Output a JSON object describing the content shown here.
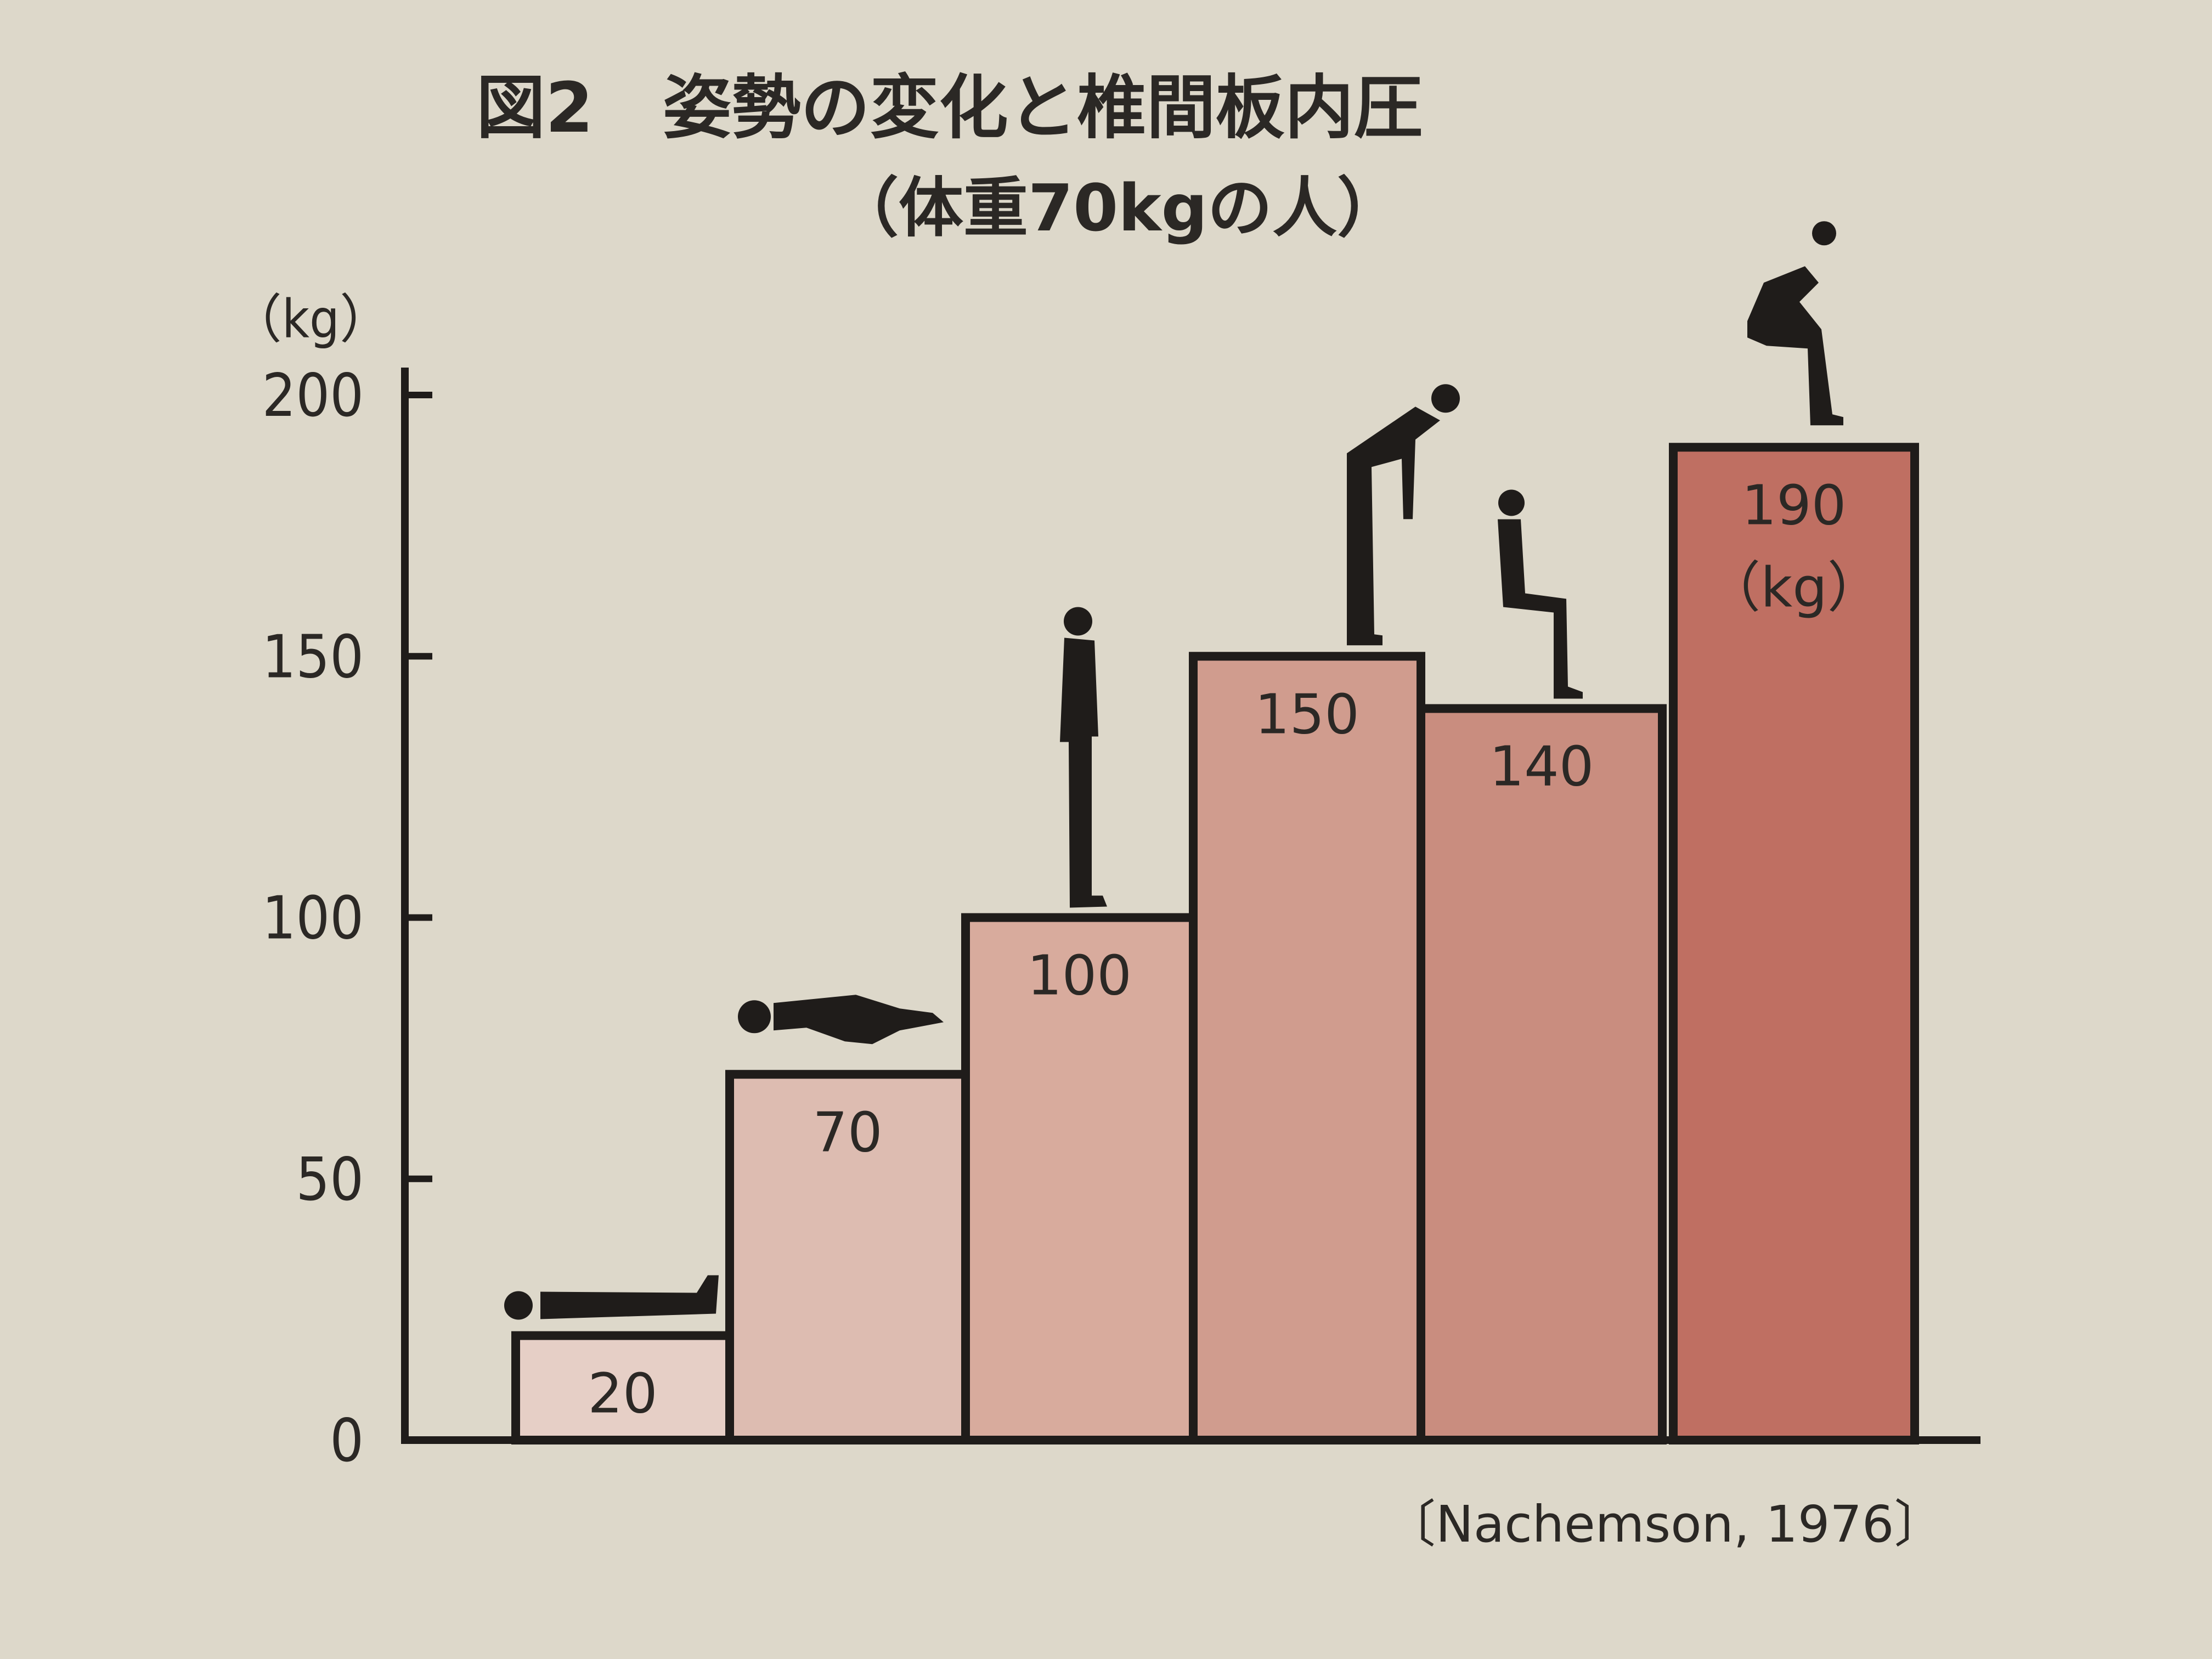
{
  "chart_data": {
    "type": "bar",
    "title": "図2　姿勢の変化と椎間板内圧",
    "subtitle": "（体重70kgの人）",
    "ylabel": "（kg）",
    "xlabel": "",
    "ylim": [
      0,
      200
    ],
    "y_ticks": [
      "0",
      "50",
      "100",
      "150",
      "200"
    ],
    "y_tick_values": [
      0,
      50,
      100,
      150,
      200
    ],
    "values": [
      20,
      70,
      100,
      150,
      140,
      190
    ],
    "value_labels": [
      "20",
      "70",
      "100",
      "150",
      "140",
      "190"
    ],
    "last_value_unit": "（kg）",
    "bar_colors": [
      "#e6cfc6",
      "#ddbcb1",
      "#d8ab9d",
      "#d09c8e",
      "#c98d7f",
      "#bf6f62"
    ],
    "posture_icons": [
      "lying-supine-icon",
      "lying-side-icon",
      "standing-icon",
      "bending-forward-icon",
      "sitting-icon",
      "sitting-bending-forward-icon"
    ],
    "source": "〔Nachemson, 1976〕",
    "grid": false,
    "legend": "none"
  }
}
